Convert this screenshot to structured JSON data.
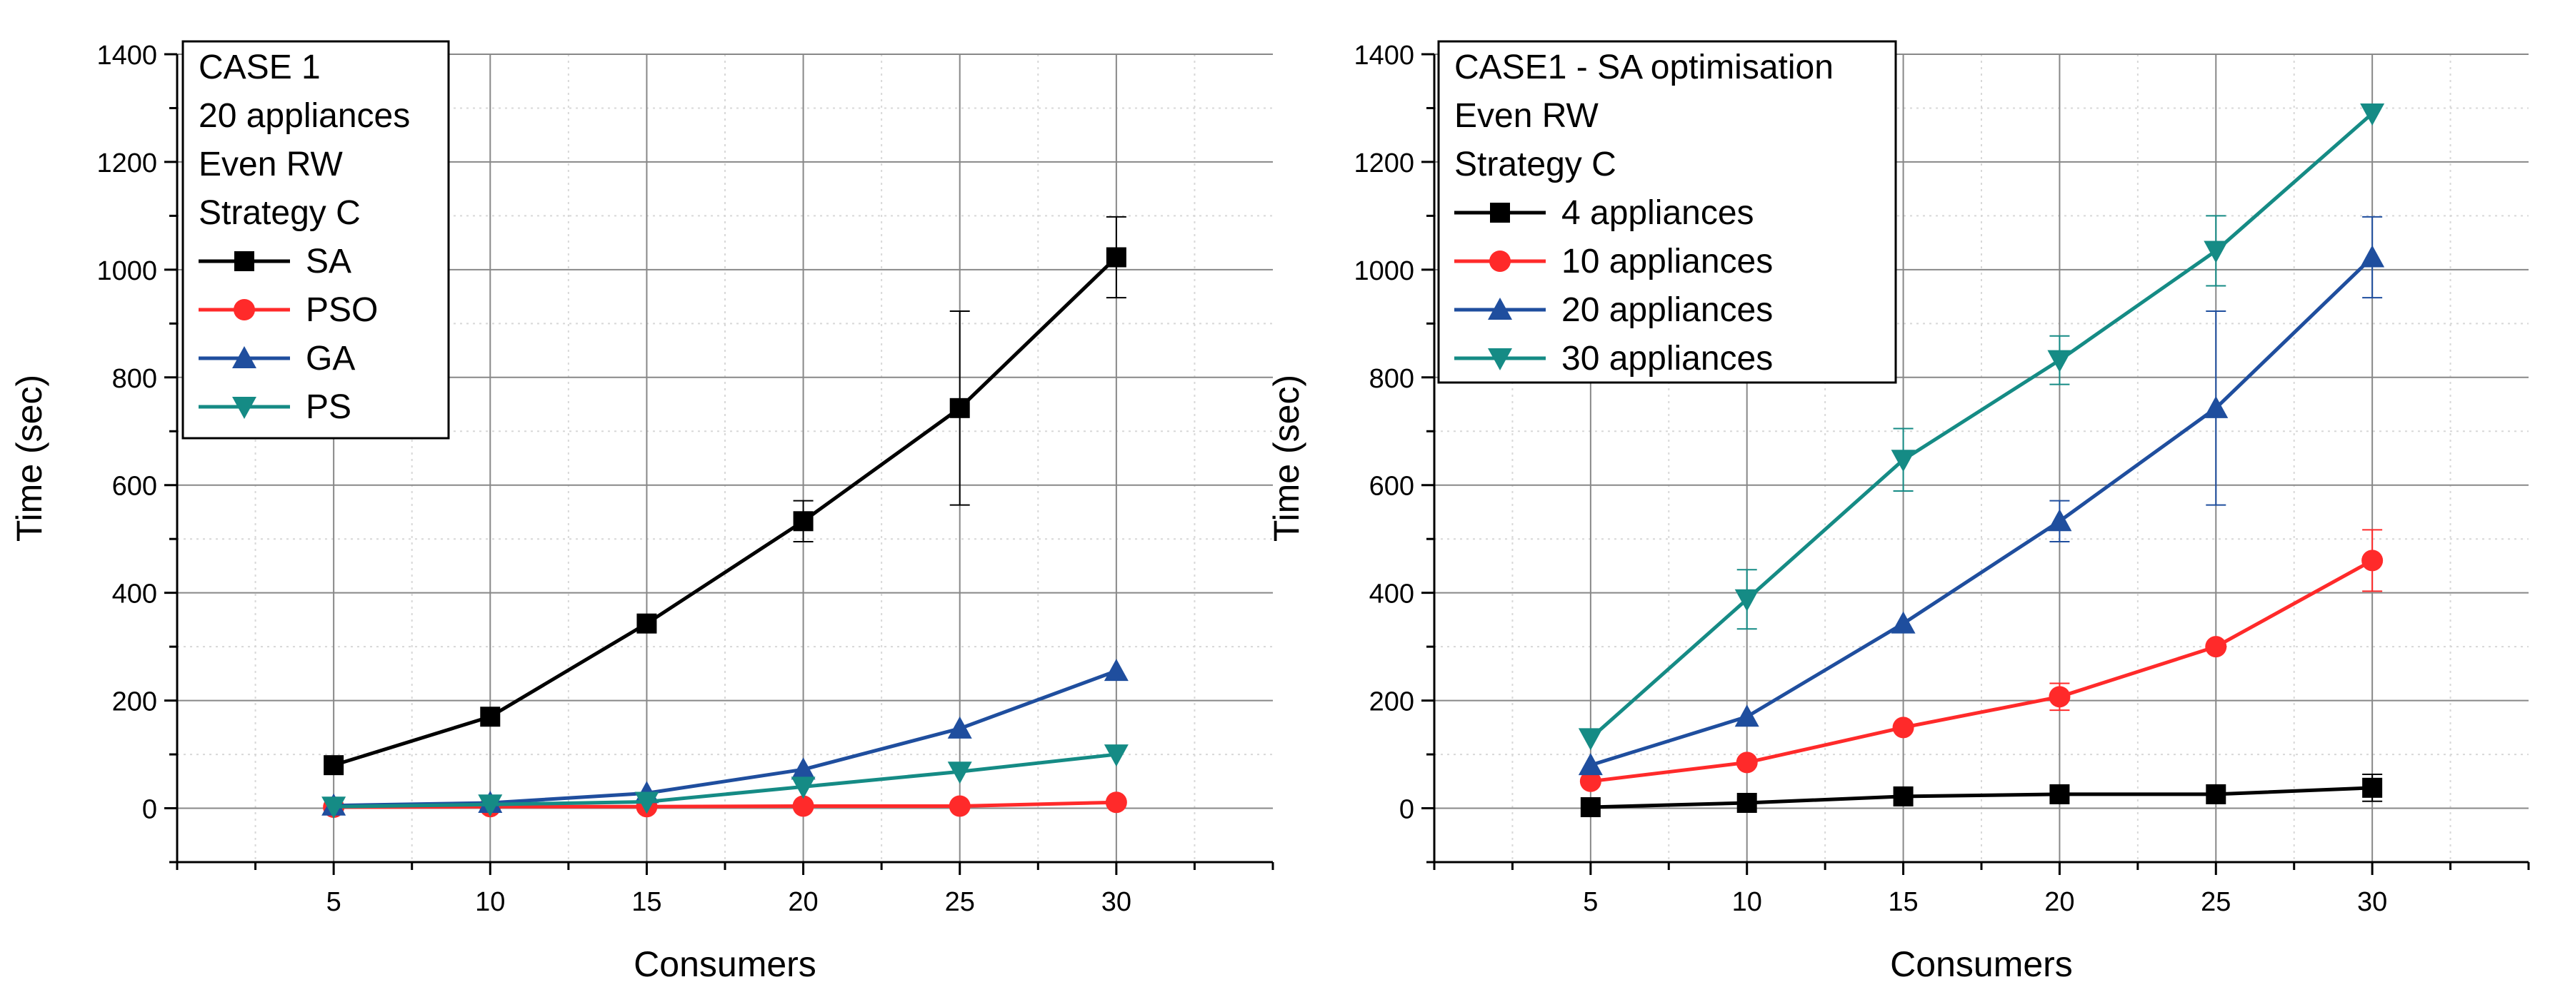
{
  "chart_data": [
    {
      "type": "line",
      "title": "",
      "xlabel": "Consumers",
      "ylabel": "Time (sec)",
      "xlim": [
        0,
        35
      ],
      "ylim": [
        -100,
        1400
      ],
      "x_ticks": [
        5,
        10,
        15,
        20,
        25,
        30
      ],
      "y_ticks": [
        0,
        200,
        400,
        600,
        800,
        1000,
        1200,
        1400
      ],
      "grid": true,
      "legend_position": "top-left",
      "legend_header": [
        "CASE 1",
        "20 appliances",
        "Even RW",
        "Strategy C"
      ],
      "x": [
        5,
        10,
        15,
        20,
        25,
        30
      ],
      "series": [
        {
          "name": "SA",
          "color": "#000000",
          "marker": "square",
          "values": [
            80,
            170,
            343,
            533,
            743,
            1023
          ],
          "errors": [
            0,
            0,
            0,
            38,
            180,
            75
          ]
        },
        {
          "name": "PSO",
          "color": "#ff2a2a",
          "marker": "circle",
          "values": [
            2,
            3,
            3,
            4,
            4,
            11
          ],
          "errors": [
            0,
            0,
            0,
            0,
            0,
            0
          ]
        },
        {
          "name": "GA",
          "color": "#1f4e9e",
          "marker": "triangle-up",
          "values": [
            5,
            10,
            28,
            72,
            148,
            255
          ],
          "errors": [
            0,
            0,
            0,
            0,
            0,
            0
          ]
        },
        {
          "name": "PS",
          "color": "#158b85",
          "marker": "triangle-down",
          "values": [
            3,
            7,
            12,
            40,
            68,
            100
          ],
          "errors": [
            0,
            0,
            0,
            0,
            0,
            0
          ]
        }
      ]
    },
    {
      "type": "line",
      "title": "",
      "xlabel": "Consumers",
      "ylabel": "Time (sec)",
      "xlim": [
        0,
        35
      ],
      "ylim": [
        -100,
        1400
      ],
      "x_ticks": [
        5,
        10,
        15,
        20,
        25,
        30
      ],
      "y_ticks": [
        0,
        200,
        400,
        600,
        800,
        1000,
        1200,
        1400
      ],
      "grid": true,
      "legend_position": "top-left",
      "legend_header": [
        "CASE1 - SA optimisation",
        "Even RW",
        "Strategy C"
      ],
      "x": [
        5,
        10,
        15,
        20,
        25,
        30
      ],
      "series": [
        {
          "name": "4 appliances",
          "color": "#000000",
          "marker": "square",
          "values": [
            2,
            10,
            22,
            26,
            26,
            38
          ],
          "errors": [
            0,
            0,
            0,
            0,
            0,
            25
          ]
        },
        {
          "name": "10 appliances",
          "color": "#ff2a2a",
          "marker": "circle",
          "values": [
            50,
            85,
            150,
            207,
            300,
            460
          ],
          "errors": [
            0,
            0,
            0,
            25,
            0,
            57
          ]
        },
        {
          "name": "20 appliances",
          "color": "#1f4e9e",
          "marker": "triangle-up",
          "values": [
            80,
            170,
            343,
            533,
            743,
            1023
          ],
          "errors": [
            0,
            0,
            0,
            38,
            180,
            75
          ]
        },
        {
          "name": "30 appliances",
          "color": "#158b85",
          "marker": "triangle-down",
          "values": [
            130,
            388,
            647,
            832,
            1035,
            1290
          ],
          "errors": [
            0,
            55,
            58,
            45,
            65,
            0
          ]
        }
      ]
    }
  ]
}
